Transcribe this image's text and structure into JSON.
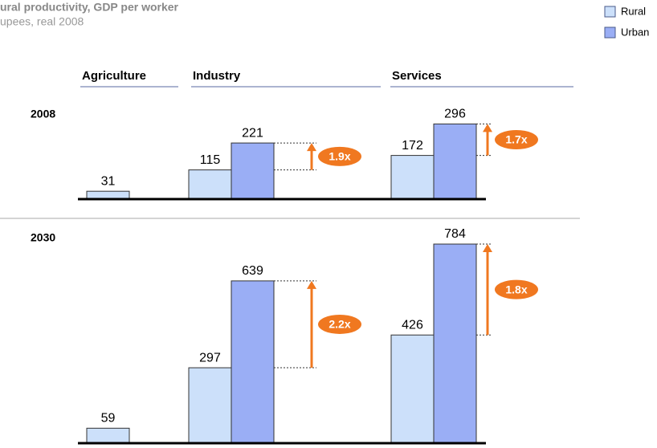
{
  "chart_data": {
    "type": "bar",
    "title": "ural productivity, GDP per worker",
    "subtitle": "upees, real 2008",
    "categories": [
      "Agriculture",
      "Industry",
      "Services"
    ],
    "series": [
      {
        "name": "Rural",
        "color": "#cce0fa"
      },
      {
        "name": "Urban",
        "color": "#9aaef5"
      }
    ],
    "panels": [
      {
        "label": "2008",
        "values": [
          [
            31,
            115,
            172
          ],
          [
            null,
            221,
            296
          ]
        ],
        "annotations": [
          null,
          "1.9x",
          "1.7x"
        ]
      },
      {
        "label": "2030",
        "values": [
          [
            59,
            297,
            426
          ],
          [
            null,
            639,
            784
          ]
        ],
        "annotations": [
          null,
          "2.2x",
          "1.8x"
        ]
      }
    ]
  }
}
